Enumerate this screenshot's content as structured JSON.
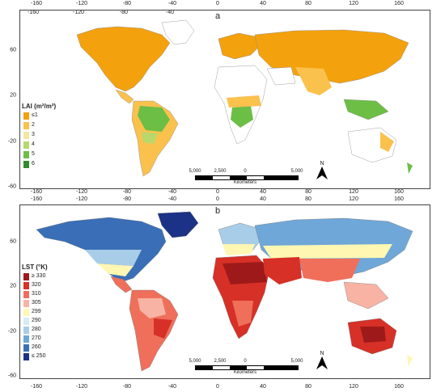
{
  "panel_a": {
    "label": "a",
    "legend_title": "LAI (m²/m²)",
    "legend_items": [
      {
        "label": "≤1",
        "color": "#f3a10d"
      },
      {
        "label": "2",
        "color": "#fbc14d"
      },
      {
        "label": "3",
        "color": "#f3e6a1"
      },
      {
        "label": "4",
        "color": "#b9d86b"
      },
      {
        "label": "5",
        "color": "#6cbe45"
      },
      {
        "label": "6",
        "color": "#2f8c2d"
      }
    ],
    "lon_ticks_top": [
      "-160",
      "-120",
      "-80",
      "-40",
      "0",
      "40",
      "80",
      "120",
      "160"
    ],
    "lon_ticks_bottom": [
      "-160",
      "-120",
      "-80",
      "-40",
      "0",
      "40",
      "80",
      "120",
      "160"
    ],
    "lat_ticks": [
      "60",
      "20",
      "-20",
      "-60"
    ]
  },
  "panel_b": {
    "label": "b",
    "legend_title": "LST (°K)",
    "legend_items": [
      {
        "label": "≥ 330",
        "color": "#9e1a1a"
      },
      {
        "label": "320",
        "color": "#d73027"
      },
      {
        "label": "310",
        "color": "#ef6f5b"
      },
      {
        "label": "305",
        "color": "#f8b3a4"
      },
      {
        "label": "299",
        "color": "#fff7b2"
      },
      {
        "label": "290",
        "color": "#d8ebf5"
      },
      {
        "label": "280",
        "color": "#a8cde8"
      },
      {
        "label": "270",
        "color": "#6fa7d8"
      },
      {
        "label": "260",
        "color": "#3a6fb8"
      },
      {
        "label": "≤ 250",
        "color": "#1c3287"
      }
    ],
    "lon_ticks_top": [
      "-160",
      "-120",
      "-80",
      "-40",
      "0",
      "40",
      "80",
      "120",
      "160"
    ],
    "lon_ticks_bottom": [
      "-160",
      "-120",
      "-80",
      "-40",
      "0",
      "40",
      "80",
      "120",
      "160"
    ],
    "lat_ticks": [
      "60",
      "20",
      "-20",
      "-60"
    ]
  },
  "scale": {
    "labels": [
      "5,000",
      "2,500",
      "0",
      "5,000"
    ],
    "unit": "Kilometers"
  },
  "north_label": "N"
}
